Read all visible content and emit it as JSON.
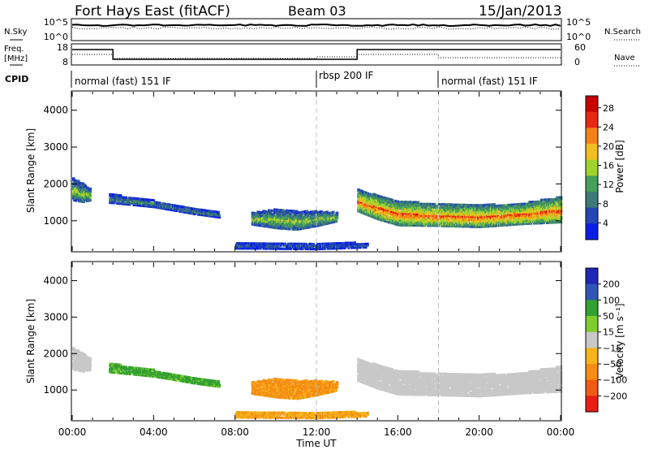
{
  "header": {
    "station": "Fort Hays East (fitACF)",
    "beam": "Beam 03",
    "date": "15/Jan/2013"
  },
  "noise_panel": {
    "left_label": "N.Sky",
    "right_label": "N.Search",
    "left_ticks": [
      "10^5",
      "10^0"
    ],
    "right_ticks": [
      "10^5",
      "10^0"
    ]
  },
  "freq_panel": {
    "left_label_line1": "Freq.",
    "left_label_line2": "[MHz]",
    "right_label": "Nave",
    "left_ticks": [
      "18",
      "8"
    ],
    "right_ticks": [
      "60",
      "0"
    ]
  },
  "cpid": {
    "label": "CPID",
    "segments": [
      {
        "text": "normal (fast) 151 IF",
        "start_hour": 0
      },
      {
        "text": "rbsp 200 IF",
        "start_hour": 12
      },
      {
        "text": "normal (fast) 151 IF",
        "start_hour": 18
      }
    ]
  },
  "time_axis": {
    "label": "Time UT",
    "ticks": [
      "00:00",
      "04:00",
      "08:00",
      "12:00",
      "16:00",
      "20:00",
      "00:00"
    ]
  },
  "colors": {
    "power": [
      "#0a1ee6",
      "#2348b4",
      "#3c7a78",
      "#46a05a",
      "#a0d22d",
      "#f0be1e",
      "#f58216",
      "#e62814",
      "#c80000"
    ],
    "velocity": [
      "#1e28b4",
      "#2d55b4",
      "#32a032",
      "#7dcd2d",
      "#c8c8c8",
      "#f5b419",
      "#f58c14",
      "#f05a14",
      "#e61e14"
    ]
  },
  "chart_data": [
    {
      "type": "heatmap",
      "title": "",
      "xlabel": "",
      "ylabel": "Slant Range [km]",
      "xlim": [
        0,
        24
      ],
      "ylim": [
        180,
        4500
      ],
      "yticks": [
        "1000",
        "2000",
        "3000",
        "4000"
      ],
      "colorbar": {
        "label": "Power [dB]",
        "ticks": [
          "4",
          "8",
          "12",
          "16",
          "20",
          "24",
          "28"
        ],
        "range": [
          0,
          30
        ]
      },
      "bands": [
        {
          "x": [
            0.0,
            0.5,
            0.9
          ],
          "center": [
            1850,
            1750,
            1700
          ],
          "half_width": [
            300,
            250,
            150
          ],
          "peak": 14
        },
        {
          "x": [
            1.8,
            4.0,
            6.0,
            7.2
          ],
          "center": [
            1600,
            1450,
            1250,
            1150
          ],
          "half_width": [
            120,
            90,
            80,
            70
          ],
          "peak": 9
        },
        {
          "x": [
            8.8,
            10.0,
            11.0,
            12.0,
            13.0
          ],
          "center": [
            1050,
            1050,
            1000,
            1050,
            1100
          ],
          "half_width": [
            160,
            260,
            250,
            200,
            120
          ],
          "peak": 14
        },
        {
          "x": [
            14.0,
            15.0,
            16.0,
            18.0,
            20.0,
            22.0,
            24.0
          ],
          "center": [
            1550,
            1350,
            1200,
            1150,
            1120,
            1180,
            1300
          ],
          "half_width": [
            300,
            320,
            330,
            300,
            300,
            280,
            350
          ],
          "peak": 22
        },
        {
          "x": [
            8.0,
            12.0,
            14.5
          ],
          "center": [
            320,
            310,
            330
          ],
          "half_width": [
            80,
            90,
            60
          ],
          "peak": 6
        }
      ]
    },
    {
      "type": "heatmap",
      "title": "",
      "xlabel": "Time UT",
      "ylabel": "Slant Range [km]",
      "xlim": [
        0,
        24
      ],
      "ylim": [
        180,
        4500
      ],
      "yticks": [
        "1000",
        "2000",
        "3000",
        "4000"
      ],
      "colorbar": {
        "label": "Velocity [m s⁻¹]",
        "ticks": [
          "200",
          "100",
          "50",
          "15",
          "−15",
          "−50",
          "−100",
          "−200"
        ],
        "range": [
          -250,
          250
        ]
      },
      "bands": [
        {
          "x": [
            0.0,
            0.5,
            0.9
          ],
          "center": [
            1850,
            1750,
            1700
          ],
          "half_width": [
            300,
            250,
            150
          ],
          "velocity": 0
        },
        {
          "x": [
            1.8,
            4.0,
            6.0,
            7.2
          ],
          "center": [
            1600,
            1450,
            1250,
            1150
          ],
          "half_width": [
            120,
            90,
            80,
            70
          ],
          "velocity": 40
        },
        {
          "x": [
            8.8,
            10.0,
            11.0,
            12.0,
            13.0
          ],
          "center": [
            1050,
            1050,
            1000,
            1050,
            1100
          ],
          "half_width": [
            160,
            260,
            250,
            200,
            120
          ],
          "velocity": -40
        },
        {
          "x": [
            14.0,
            15.0,
            16.0,
            18.0,
            20.0,
            22.0,
            24.0
          ],
          "center": [
            1550,
            1350,
            1200,
            1150,
            1120,
            1180,
            1300
          ],
          "half_width": [
            300,
            320,
            330,
            300,
            300,
            280,
            350
          ],
          "velocity": 0
        },
        {
          "x": [
            8.0,
            12.0,
            14.5
          ],
          "center": [
            320,
            310,
            330
          ],
          "half_width": [
            80,
            90,
            60
          ],
          "velocity": -30
        }
      ]
    }
  ]
}
